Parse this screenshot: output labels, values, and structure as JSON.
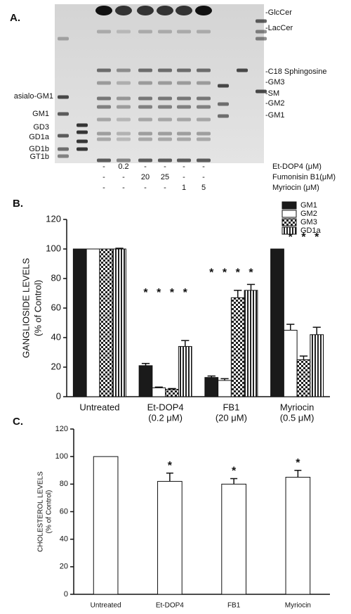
{
  "panel_a": {
    "label": "A.",
    "left_labels": [
      "asialo-GM1",
      "GM1",
      "GD3",
      "GD1a",
      "GD1b",
      "GT1b"
    ],
    "right_labels": [
      "-GlcCer",
      "-LacCer",
      "-C18 Sphingosine",
      "-GM3",
      "-SM",
      "-GM2",
      "-GM1"
    ],
    "treatments": [
      {
        "name": "Et-DOP4 (μM)",
        "lanes": [
          "-",
          "0.2",
          "-",
          "-",
          "-",
          "-"
        ]
      },
      {
        "name": "Fumonisin B1(μM)",
        "lanes": [
          "-",
          "-",
          "20",
          "25",
          "-",
          "-"
        ]
      },
      {
        "name": "Myriocin (μM)",
        "lanes": [
          "-",
          "-",
          "-",
          "-",
          "1",
          "5"
        ]
      }
    ]
  },
  "chart_data": [
    {
      "type": "grouped-bar",
      "panel_label": "B.",
      "categories": [
        [
          "Untreated"
        ],
        [
          "Et-DOP4",
          "(0.2 μM)"
        ],
        [
          "FB1",
          "(20 μM)"
        ],
        [
          "Myriocin",
          "(0.5 μM)"
        ]
      ],
      "series": [
        {
          "name": "GM1",
          "color": "#1a1a1a",
          "pattern": "solid",
          "values": [
            100,
            21,
            13,
            100
          ],
          "errors": [
            0,
            1.5,
            1,
            0
          ],
          "significance": [
            null,
            "*",
            "*",
            null
          ]
        },
        {
          "name": "GM2",
          "color": "#ffffff",
          "pattern": "solid",
          "values": [
            100,
            6,
            11,
            45
          ],
          "errors": [
            0,
            0.5,
            1.2,
            4
          ],
          "significance": [
            null,
            "*",
            "*",
            "*"
          ]
        },
        {
          "name": "GM3",
          "color": "#1a1a1a",
          "pattern": "checker",
          "values": [
            100,
            5,
            67,
            25
          ],
          "errors": [
            0,
            0.5,
            5,
            2.5
          ],
          "significance": [
            null,
            "*",
            "*",
            "*"
          ]
        },
        {
          "name": "GD1a",
          "color": "#1a1a1a",
          "pattern": "vstripe",
          "values": [
            100,
            34,
            72,
            42
          ],
          "errors": [
            0.5,
            4,
            4,
            5
          ],
          "significance": [
            null,
            "*",
            "*",
            "*"
          ]
        }
      ],
      "ylabel": [
        "GANGLIOSIDE LEVELS",
        "(% of Control)"
      ],
      "ylim": [
        0,
        120
      ],
      "yticks": [
        0,
        20,
        40,
        60,
        80,
        100,
        120
      ],
      "legend": "upper right"
    },
    {
      "type": "bar",
      "panel_label": "C.",
      "categories": [
        [
          "Untreated"
        ],
        [
          "Et-DOP4"
        ],
        [
          "FB1"
        ],
        [
          "Myriocin"
        ]
      ],
      "values": [
        100,
        82,
        80,
        85
      ],
      "errors": [
        0,
        6,
        4,
        5
      ],
      "significance": [
        null,
        "*",
        "*",
        "*"
      ],
      "color": "#ffffff",
      "ylabel": [
        "CHOLESTEROL LEVELS",
        "(% of Control)"
      ],
      "ylim": [
        0,
        120
      ],
      "yticks": [
        0,
        20,
        40,
        60,
        80,
        100,
        120
      ]
    }
  ]
}
